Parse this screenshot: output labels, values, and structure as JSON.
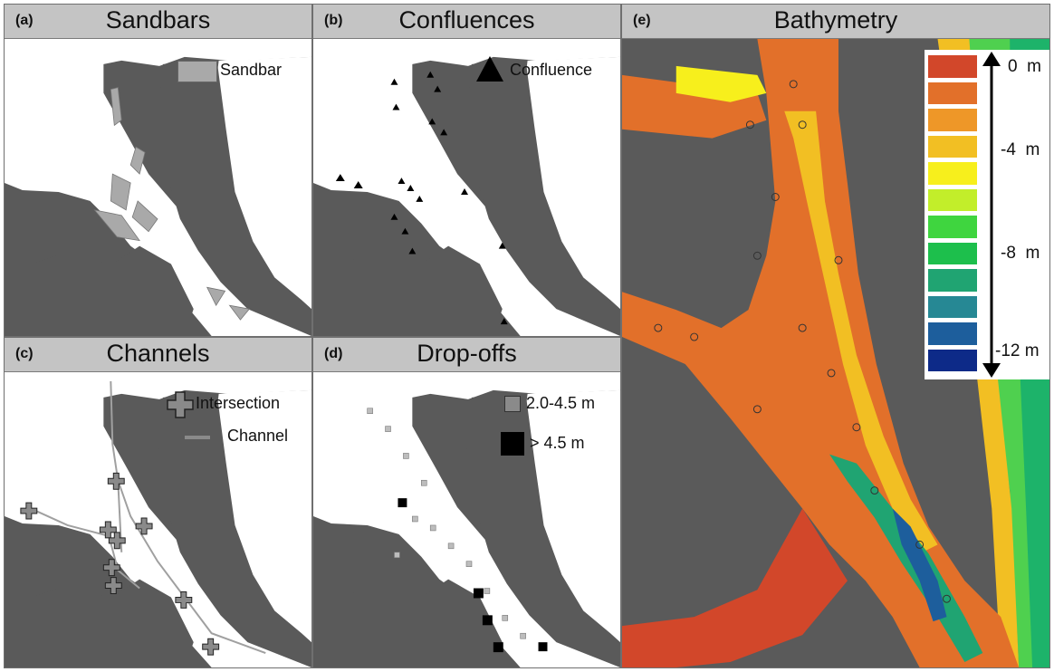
{
  "panels": {
    "a": {
      "tag": "(a)",
      "title": "Sandbars",
      "legend_label": "Sandbar"
    },
    "b": {
      "tag": "(b)",
      "title": "Confluences",
      "legend_label": "Confluence"
    },
    "c": {
      "tag": "(c)",
      "title": "Channels",
      "legend_intersection": "Intersection",
      "legend_channel": "Channel"
    },
    "d": {
      "tag": "(d)",
      "title": "Drop-offs",
      "legend_small": "2.0-4.5 m",
      "legend_large": "> 4.5 m"
    },
    "e": {
      "tag": "(e)",
      "title": "Bathymetry",
      "depth_labels": [
        "0  m",
        "-4  m",
        "-8  m",
        "-12 m"
      ],
      "depth_colors": [
        "#d2472a",
        "#e2702a",
        "#ee9728",
        "#f2bf23",
        "#f7ef1c",
        "#c2ee2a",
        "#3fd53f",
        "#1dbf4c",
        "#20a472",
        "#268894",
        "#1d5e9c",
        "#0d2a88"
      ]
    }
  },
  "colors": {
    "land": "#5a5a5a",
    "water": "#ffffff",
    "sandbar": "#a9a9a9",
    "header": "#c4c4c4",
    "marker_dark": "#000000",
    "channel_line": "#a0a0a0",
    "intersection": "#8a8a8a",
    "dropoff_small": "#bdbdbd"
  }
}
